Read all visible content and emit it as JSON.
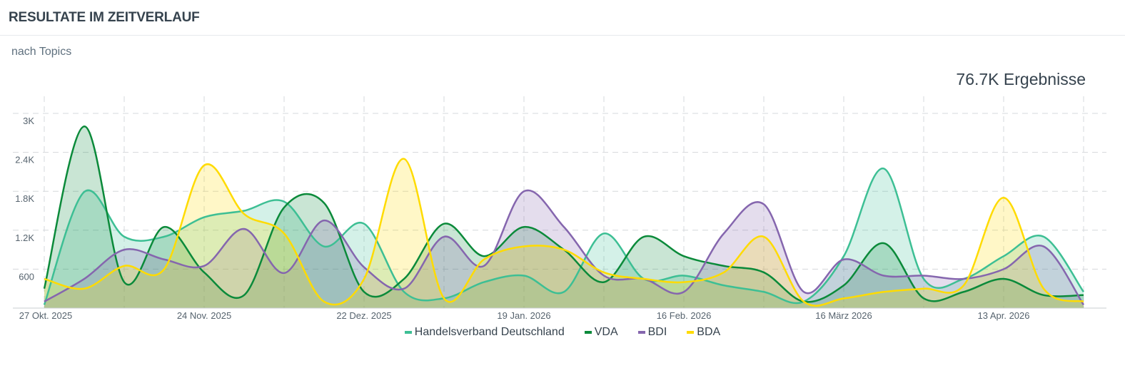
{
  "header": {
    "title": "RESULTATE IM ZEITVERLAUF"
  },
  "subtitle": "nach Topics",
  "total": "76.7K Ergebnisse",
  "chart_data": {
    "type": "area",
    "smoothing": "spline",
    "title": "",
    "xlabel": "",
    "ylabel": "",
    "ylim": [
      0,
      3000
    ],
    "yticks": [
      0,
      600,
      1200,
      1800,
      2400,
      3000
    ],
    "ytick_labels": [
      "",
      "600",
      "1.2K",
      "1.8K",
      "2.4K",
      "3K"
    ],
    "x": [
      "27 Okt. 2025",
      "3 Nov. 2025",
      "10 Nov. 2025",
      "17 Nov. 2025",
      "24 Nov. 2025",
      "1 Dez. 2025",
      "8 Dez. 2025",
      "15 Dez. 2025",
      "22 Dez. 2025",
      "29 Dez. 2025",
      "5 Jan. 2026",
      "12 Jan. 2026",
      "19 Jan. 2026",
      "26 Jan. 2026",
      "2 Feb. 2026",
      "9 Feb. 2026",
      "16 Feb. 2026",
      "23 Feb. 2026",
      "2 März 2026",
      "9 März 2026",
      "16 März 2026",
      "23 März 2026",
      "30 März 2026",
      "6 Apr. 2026",
      "13 Apr. 2026",
      "20 Apr. 2026",
      "27 Apr. 2026"
    ],
    "xtick_labels": [
      "27 Okt. 2025",
      "24 Nov. 2025",
      "22 Dez. 2025",
      "19 Jan. 2026",
      "16 Feb. 2026",
      "16 März 2026",
      "13 Apr. 2026"
    ],
    "grid": true,
    "legend_position": "bottom",
    "series": [
      {
        "name": "Handelsverband Deutschland",
        "color": "#3dbf94",
        "values": [
          50,
          1790,
          1100,
          1100,
          1400,
          1500,
          1640,
          950,
          1300,
          250,
          150,
          400,
          500,
          250,
          1150,
          450,
          500,
          350,
          250,
          100,
          800,
          2150,
          450,
          450,
          800,
          1100,
          250
        ]
      },
      {
        "name": "VDA",
        "color": "#0b8a3a",
        "values": [
          300,
          2800,
          400,
          1250,
          550,
          200,
          1550,
          1620,
          250,
          450,
          1300,
          800,
          1250,
          900,
          400,
          1100,
          800,
          650,
          550,
          100,
          350,
          1000,
          150,
          250,
          450,
          200,
          200
        ]
      },
      {
        "name": "BDI",
        "color": "#8566ae",
        "values": [
          100,
          450,
          900,
          750,
          650,
          1220,
          540,
          1350,
          630,
          300,
          1100,
          650,
          1800,
          1250,
          500,
          450,
          250,
          1150,
          1600,
          250,
          750,
          500,
          500,
          450,
          600,
          950,
          50
        ]
      },
      {
        "name": "BDA",
        "color": "#ffdb00",
        "values": [
          450,
          300,
          650,
          600,
          2200,
          1450,
          1150,
          100,
          450,
          2300,
          150,
          750,
          950,
          900,
          550,
          450,
          400,
          550,
          1100,
          100,
          150,
          250,
          300,
          350,
          1700,
          300,
          100
        ]
      }
    ]
  }
}
